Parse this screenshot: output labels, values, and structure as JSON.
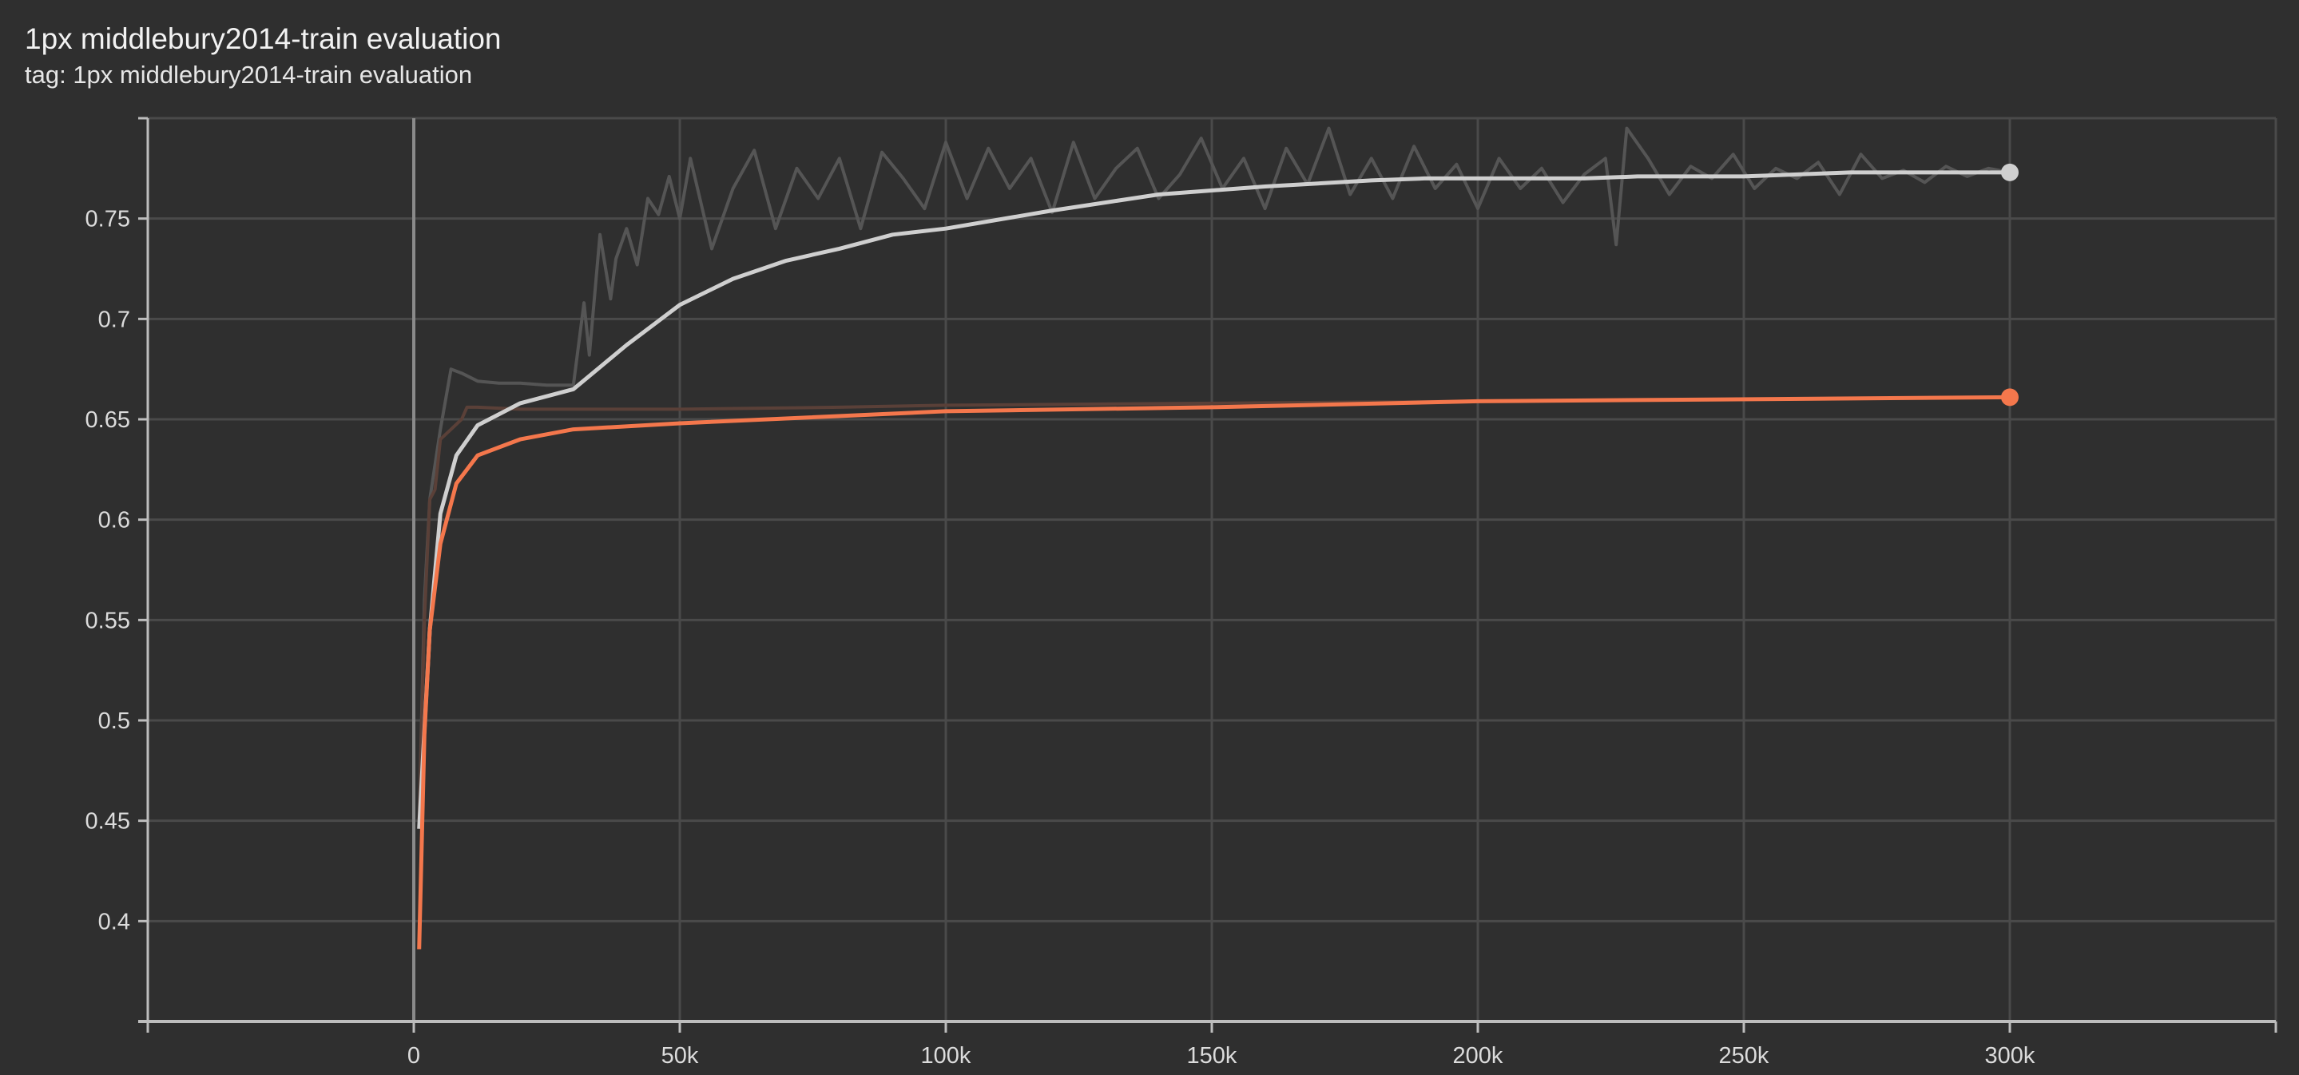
{
  "title": "1px middlebury2014-train evaluation",
  "subtitle": "tag: 1px middlebury2014-train evaluation",
  "chart_data": {
    "type": "line",
    "title": "1px middlebury2014-train evaluation",
    "xlabel": "",
    "ylabel": "",
    "xlim": [
      -50000,
      350000
    ],
    "ylim": [
      0.35,
      0.8
    ],
    "grid": true,
    "x_ticks": [
      0,
      50000,
      100000,
      150000,
      200000,
      250000,
      300000
    ],
    "x_tick_labels": [
      "0",
      "50k",
      "100k",
      "150k",
      "200k",
      "250k",
      "300k"
    ],
    "y_ticks": [
      0.4,
      0.45,
      0.5,
      0.55,
      0.6,
      0.65,
      0.7,
      0.75
    ],
    "y_tick_labels": [
      "0.4",
      "0.45",
      "0.5",
      "0.55",
      "0.6",
      "0.65",
      "0.7",
      "0.75"
    ],
    "colors": {
      "background": "#2f2f2f",
      "white_run": "#cfcfcf",
      "white_raw": "#555555",
      "orange_run": "#f4774c",
      "orange_raw": "#5a4038",
      "grid": "#4a4a4a",
      "axis": "#bdbdbd"
    },
    "series": [
      {
        "kind": "raw",
        "color": "#555555",
        "x": [
          1000,
          2000,
          3000,
          5000,
          7000,
          9000,
          12000,
          16000,
          20000,
          25000,
          30000,
          32000,
          33000,
          35000,
          37000,
          38000,
          40000,
          42000,
          44000,
          46000,
          48000,
          50000,
          52000,
          56000,
          60000,
          64000,
          68000,
          72000,
          76000,
          80000,
          84000,
          88000,
          92000,
          96000,
          100000,
          104000,
          108000,
          112000,
          116000,
          120000,
          124000,
          128000,
          132000,
          136000,
          140000,
          144000,
          148000,
          152000,
          156000,
          160000,
          164000,
          168000,
          172000,
          176000,
          180000,
          184000,
          188000,
          192000,
          196000,
          200000,
          204000,
          208000,
          212000,
          216000,
          220000,
          224000,
          226000,
          228000,
          232000,
          236000,
          240000,
          244000,
          248000,
          252000,
          256000,
          260000,
          264000,
          268000,
          272000,
          276000,
          280000,
          284000,
          288000,
          292000,
          296000,
          300000
        ],
        "y": [
          0.45,
          0.56,
          0.61,
          0.645,
          0.675,
          0.673,
          0.669,
          0.668,
          0.668,
          0.667,
          0.667,
          0.708,
          0.682,
          0.742,
          0.71,
          0.73,
          0.745,
          0.727,
          0.76,
          0.752,
          0.771,
          0.75,
          0.78,
          0.735,
          0.765,
          0.784,
          0.745,
          0.775,
          0.76,
          0.78,
          0.745,
          0.783,
          0.77,
          0.755,
          0.788,
          0.76,
          0.785,
          0.765,
          0.78,
          0.753,
          0.788,
          0.76,
          0.775,
          0.785,
          0.76,
          0.772,
          0.79,
          0.765,
          0.78,
          0.755,
          0.785,
          0.767,
          0.795,
          0.762,
          0.78,
          0.76,
          0.786,
          0.765,
          0.777,
          0.755,
          0.78,
          0.765,
          0.775,
          0.758,
          0.772,
          0.78,
          0.737,
          0.795,
          0.78,
          0.762,
          0.776,
          0.77,
          0.782,
          0.765,
          0.775,
          0.77,
          0.778,
          0.762,
          0.782,
          0.77,
          0.774,
          0.768,
          0.776,
          0.771,
          0.775,
          0.773
        ]
      },
      {
        "kind": "raw",
        "color": "#5a4038",
        "x": [
          1000,
          2000,
          3000,
          4000,
          5000,
          7000,
          9000,
          10000,
          12000,
          20000,
          30000,
          50000,
          80000,
          100000,
          150000,
          200000,
          250000,
          300000
        ],
        "y": [
          0.45,
          0.55,
          0.61,
          0.615,
          0.64,
          0.645,
          0.65,
          0.656,
          0.656,
          0.655,
          0.655,
          0.655,
          0.656,
          0.657,
          0.658,
          0.659,
          0.66,
          0.661
        ]
      },
      {
        "kind": "smoothed",
        "color": "#cfcfcf",
        "x": [
          1000,
          3000,
          5000,
          8000,
          12000,
          20000,
          30000,
          35000,
          40000,
          45000,
          50000,
          60000,
          70000,
          80000,
          90000,
          100000,
          120000,
          140000,
          160000,
          180000,
          190000,
          200000,
          220000,
          230000,
          250000,
          270000,
          300000
        ],
        "y": [
          0.446,
          0.545,
          0.603,
          0.632,
          0.647,
          0.658,
          0.665,
          0.676,
          0.687,
          0.697,
          0.707,
          0.72,
          0.729,
          0.735,
          0.742,
          0.745,
          0.754,
          0.762,
          0.766,
          0.769,
          0.77,
          0.77,
          0.77,
          0.771,
          0.771,
          0.773,
          0.773
        ]
      },
      {
        "kind": "smoothed",
        "color": "#f4774c",
        "x": [
          1000,
          2000,
          3000,
          5000,
          8000,
          12000,
          20000,
          30000,
          50000,
          100000,
          150000,
          200000,
          300000
        ],
        "y": [
          0.386,
          0.493,
          0.545,
          0.588,
          0.618,
          0.632,
          0.64,
          0.645,
          0.648,
          0.654,
          0.656,
          0.659,
          0.661
        ]
      }
    ]
  }
}
